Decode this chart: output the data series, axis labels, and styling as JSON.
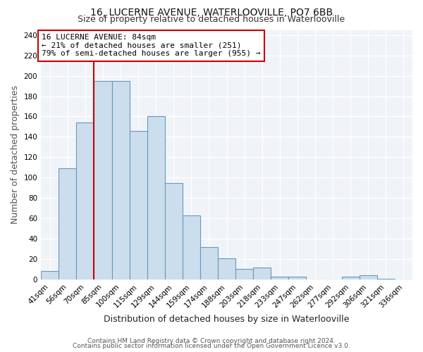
{
  "title": "16, LUCERNE AVENUE, WATERLOOVILLE, PO7 6BB",
  "subtitle": "Size of property relative to detached houses in Waterlooville",
  "xlabel": "Distribution of detached houses by size in Waterlooville",
  "ylabel": "Number of detached properties",
  "bar_labels": [
    "41sqm",
    "56sqm",
    "70sqm",
    "85sqm",
    "100sqm",
    "115sqm",
    "129sqm",
    "144sqm",
    "159sqm",
    "174sqm",
    "188sqm",
    "203sqm",
    "218sqm",
    "233sqm",
    "247sqm",
    "262sqm",
    "277sqm",
    "292sqm",
    "306sqm",
    "321sqm",
    "336sqm"
  ],
  "bar_heights": [
    8,
    109,
    154,
    195,
    195,
    146,
    160,
    95,
    63,
    32,
    21,
    10,
    12,
    3,
    3,
    0,
    0,
    3,
    4,
    1,
    0
  ],
  "bar_color": "#ccdded",
  "bar_edge_color": "#6699bb",
  "vline_x": 2.5,
  "vline_color": "#cc0000",
  "annotation_text": "16 LUCERNE AVENUE: 84sqm\n← 21% of detached houses are smaller (251)\n79% of semi-detached houses are larger (955) →",
  "annotation_box_edge_color": "#cc0000",
  "ylim": [
    0,
    245
  ],
  "yticks": [
    0,
    20,
    40,
    60,
    80,
    100,
    120,
    140,
    160,
    180,
    200,
    220,
    240
  ],
  "footer_line1": "Contains HM Land Registry data © Crown copyright and database right 2024.",
  "footer_line2": "Contains public sector information licensed under the Open Government Licence v3.0.",
  "bg_color": "#ffffff",
  "plot_bg_color": "#f0f4f8",
  "title_fontsize": 10,
  "subtitle_fontsize": 9,
  "axis_label_fontsize": 9,
  "tick_fontsize": 7.5,
  "footer_fontsize": 6.5
}
